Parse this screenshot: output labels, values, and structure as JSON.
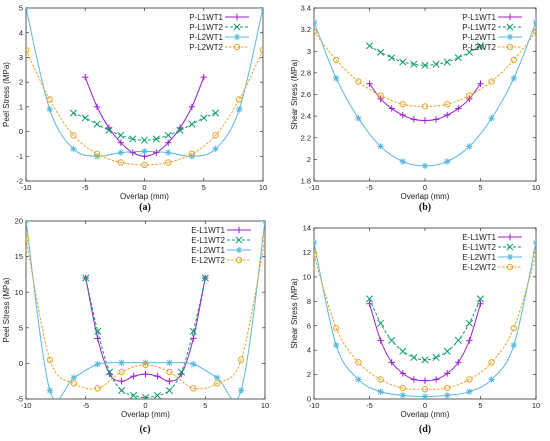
{
  "colors": {
    "L1WT1": "#9b1fc9",
    "L1WT2": "#0e9a6c",
    "L2WT1": "#5ab8df",
    "L2WT2": "#e8a32b"
  },
  "chart_data": [
    {
      "type": "line",
      "panel": "(a)",
      "xlabel": "Overlap (mm)",
      "ylabel": "Peel Stress (MPa)",
      "xlim": [
        -10,
        10
      ],
      "ylim": [
        -2,
        5
      ],
      "xticks": [
        -10,
        -5,
        0,
        5,
        10
      ],
      "yticks": [
        -2,
        -1,
        0,
        1,
        2,
        3,
        4,
        5
      ],
      "grid": false,
      "legend_position": "top-right",
      "series": [
        {
          "name": "P-L1WT1",
          "color": "#9b1fc9",
          "marker": "plus",
          "x": [
            -5,
            -4,
            -3,
            -2,
            -1,
            0,
            1,
            2,
            3,
            4,
            5
          ],
          "y": [
            2.2,
            1.0,
            0.15,
            -0.45,
            -0.85,
            -1.0,
            -0.85,
            -0.45,
            0.15,
            1.0,
            2.2
          ]
        },
        {
          "name": "P-L1WT2",
          "color": "#0e9a6c",
          "marker": "x",
          "x": [
            -6,
            -5,
            -4,
            -3,
            -2,
            -1,
            0,
            1,
            2,
            3,
            4,
            5,
            6
          ],
          "y": [
            0.75,
            0.55,
            0.3,
            0.05,
            -0.15,
            -0.3,
            -0.35,
            -0.3,
            -0.15,
            0.05,
            0.3,
            0.55,
            0.75
          ]
        },
        {
          "name": "P-L2WT1",
          "color": "#5ab8df",
          "marker": "asterisk",
          "x": [
            -10,
            -8,
            -6,
            -4,
            -2,
            0,
            2,
            4,
            6,
            8,
            10
          ],
          "y": [
            5.0,
            0.9,
            -0.7,
            -1.0,
            -0.85,
            -0.8,
            -0.85,
            -1.0,
            -0.7,
            0.9,
            5.0
          ]
        },
        {
          "name": "P-L2WT2",
          "color": "#e8a32b",
          "marker": "circle",
          "x": [
            -10,
            -8,
            -6,
            -4,
            -2,
            0,
            2,
            4,
            6,
            8,
            10
          ],
          "y": [
            3.3,
            1.3,
            -0.15,
            -0.9,
            -1.25,
            -1.35,
            -1.25,
            -0.9,
            -0.15,
            1.3,
            3.3
          ]
        }
      ]
    },
    {
      "type": "line",
      "panel": "(b)",
      "xlabel": "Overlap (mm)",
      "ylabel": "Shear Stress (MPa)",
      "xlim": [
        -10,
        10
      ],
      "ylim": [
        1.8,
        3.4
      ],
      "xticks": [
        -10,
        -5,
        0,
        5,
        10
      ],
      "yticks": [
        1.8,
        2,
        2.2,
        2.4,
        2.6,
        2.8,
        3,
        3.2,
        3.4
      ],
      "grid": false,
      "legend_position": "top-right",
      "series": [
        {
          "name": "P-L1WT1",
          "color": "#9b1fc9",
          "marker": "plus",
          "x": [
            -5,
            -4,
            -3,
            -2,
            -1,
            0,
            1,
            2,
            3,
            4,
            5
          ],
          "y": [
            2.7,
            2.56,
            2.47,
            2.41,
            2.37,
            2.36,
            2.37,
            2.41,
            2.47,
            2.56,
            2.7
          ]
        },
        {
          "name": "P-L1WT2",
          "color": "#0e9a6c",
          "marker": "x",
          "x": [
            -5,
            -4,
            -3,
            -2,
            -1,
            0,
            1,
            2,
            3,
            4,
            5
          ],
          "y": [
            3.05,
            2.99,
            2.94,
            2.9,
            2.88,
            2.87,
            2.88,
            2.9,
            2.94,
            2.99,
            3.05
          ]
        },
        {
          "name": "P-L2WT1",
          "color": "#5ab8df",
          "marker": "asterisk",
          "x": [
            -10,
            -8,
            -6,
            -4,
            -2,
            0,
            2,
            4,
            6,
            8,
            10
          ],
          "y": [
            3.27,
            2.75,
            2.38,
            2.12,
            1.98,
            1.94,
            1.98,
            2.12,
            2.38,
            2.75,
            3.27
          ]
        },
        {
          "name": "P-L2WT2",
          "color": "#e8a32b",
          "marker": "circle",
          "x": [
            -10,
            -8,
            -6,
            -4,
            -2,
            0,
            2,
            4,
            6,
            8,
            10
          ],
          "y": [
            3.18,
            2.92,
            2.72,
            2.59,
            2.51,
            2.49,
            2.51,
            2.59,
            2.72,
            2.92,
            3.18
          ]
        }
      ]
    },
    {
      "type": "line",
      "panel": "(c)",
      "xlabel": "Overlap (mm)",
      "ylabel": "Peel Stress (MPa)",
      "xlim": [
        -10,
        10
      ],
      "ylim": [
        -5,
        20
      ],
      "xticks": [
        -10,
        -5,
        0,
        5,
        10
      ],
      "yticks": [
        -5,
        0,
        5,
        10,
        15,
        20
      ],
      "grid": false,
      "legend_position": "top-right",
      "series": [
        {
          "name": "E-L1WT1",
          "color": "#9b1fc9",
          "marker": "plus",
          "x": [
            -5,
            -4,
            -3,
            -2,
            -1,
            0,
            1,
            2,
            3,
            4,
            5
          ],
          "y": [
            12,
            3.5,
            -1.5,
            -2.5,
            -1.8,
            -1.5,
            -1.8,
            -2.5,
            -1.5,
            3.5,
            12
          ]
        },
        {
          "name": "E-L1WT2",
          "color": "#0e9a6c",
          "marker": "x",
          "x": [
            -5,
            -4,
            -3,
            -2,
            -1,
            0,
            1,
            2,
            3,
            4,
            5
          ],
          "y": [
            12,
            4.5,
            -1.2,
            -3.8,
            -4.5,
            -4.8,
            -4.5,
            -3.8,
            -1.2,
            4.5,
            12
          ]
        },
        {
          "name": "E-L2WT1",
          "color": "#5ab8df",
          "marker": "asterisk",
          "x": [
            -10,
            -8,
            -6,
            -4,
            -2,
            0,
            2,
            4,
            6,
            8,
            10
          ],
          "y": [
            20,
            -3.8,
            -2.0,
            -0.1,
            0.1,
            0.1,
            0.1,
            -0.1,
            -2.0,
            -3.8,
            20
          ]
        },
        {
          "name": "E-L2WT2",
          "color": "#e8a32b",
          "marker": "circle",
          "x": [
            -10,
            -8,
            -6,
            -4,
            -2,
            0,
            2,
            4,
            6,
            8,
            10
          ],
          "y": [
            17.5,
            0.5,
            -2.8,
            -3.5,
            -1.2,
            -0.2,
            -1.2,
            -3.5,
            -2.8,
            0.5,
            17.5
          ]
        }
      ]
    },
    {
      "type": "line",
      "panel": "(d)",
      "xlabel": "Overlap (mm)",
      "ylabel": "Shear Stress (MPa)",
      "xlim": [
        -10,
        10
      ],
      "ylim": [
        0,
        14
      ],
      "xticks": [
        -10,
        -5,
        0,
        5,
        10
      ],
      "yticks": [
        0,
        2,
        4,
        6,
        8,
        10,
        12,
        14
      ],
      "grid": false,
      "legend_position": "top-right",
      "series": [
        {
          "name": "E-L1WT1",
          "color": "#9b1fc9",
          "marker": "plus",
          "x": [
            -5,
            -4,
            -3,
            -2,
            -1,
            0,
            1,
            2,
            3,
            4,
            5
          ],
          "y": [
            7.8,
            4.8,
            3.0,
            2.1,
            1.6,
            1.5,
            1.6,
            2.1,
            3.0,
            4.8,
            7.8
          ]
        },
        {
          "name": "E-L1WT2",
          "color": "#0e9a6c",
          "marker": "x",
          "x": [
            -5,
            -4,
            -3,
            -2,
            -1,
            0,
            1,
            2,
            3,
            4,
            5
          ],
          "y": [
            8.2,
            6.2,
            4.8,
            3.9,
            3.4,
            3.2,
            3.4,
            3.9,
            4.8,
            6.2,
            8.2
          ]
        },
        {
          "name": "E-L2WT1",
          "color": "#5ab8df",
          "marker": "asterisk",
          "x": [
            -10,
            -8,
            -6,
            -4,
            -2,
            0,
            2,
            4,
            6,
            8,
            10
          ],
          "y": [
            12.8,
            4.4,
            1.6,
            0.6,
            0.3,
            0.2,
            0.3,
            0.6,
            1.6,
            4.4,
            12.8
          ]
        },
        {
          "name": "E-L2WT2",
          "color": "#e8a32b",
          "marker": "circle",
          "x": [
            -10,
            -8,
            -6,
            -4,
            -2,
            0,
            2,
            4,
            6,
            8,
            10
          ],
          "y": [
            11.8,
            5.8,
            3.0,
            1.6,
            0.9,
            0.8,
            0.9,
            1.6,
            3.0,
            5.8,
            11.8
          ]
        }
      ]
    }
  ]
}
